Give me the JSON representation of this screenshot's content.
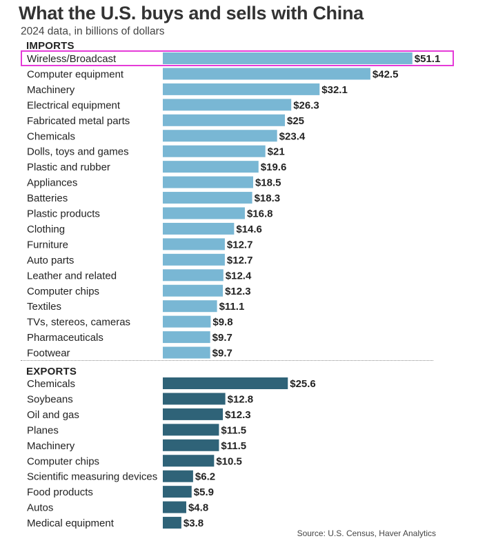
{
  "header": {
    "title": "What the U.S. buys and sells with China",
    "subtitle": "2024 data, in billions of dollars"
  },
  "footer": {
    "source": "Source: U.S. Census, Haver Analytics"
  },
  "colors": {
    "imports_bar": "#79b7d4",
    "exports_bar": "#2f6378",
    "highlight_border": "#e53ad8"
  },
  "chart_data": [
    {
      "type": "bar",
      "orientation": "horizontal",
      "section": "IMPORTS",
      "categories": [
        "Wireless/Broadcast",
        "Computer equipment",
        "Machinery",
        "Electrical equipment",
        "Fabricated metal parts",
        "Chemicals",
        "Dolls, toys and games",
        "Plastic and rubber",
        "Appliances",
        "Batteries",
        "Plastic products",
        "Clothing",
        "Furniture",
        "Auto parts",
        "Leather and related",
        "Computer chips",
        "Textiles",
        "TVs, stereos, cameras",
        "Pharmaceuticals",
        "Footwear"
      ],
      "values": [
        51.1,
        42.5,
        32.1,
        26.3,
        25,
        23.4,
        21,
        19.6,
        18.5,
        18.3,
        16.8,
        14.6,
        12.7,
        12.7,
        12.4,
        12.3,
        11.1,
        9.8,
        9.7,
        9.7
      ],
      "value_labels": [
        "$51.1",
        "$42.5",
        "$32.1",
        "$26.3",
        "$25",
        "$23.4",
        "$21",
        "$19.6",
        "$18.5",
        "$18.3",
        "$16.8",
        "$14.6",
        "$12.7",
        "$12.7",
        "$12.4",
        "$12.3",
        "$11.1",
        "$9.8",
        "$9.7",
        "$9.7"
      ],
      "highlighted_category": "Wireless/Broadcast"
    },
    {
      "type": "bar",
      "orientation": "horizontal",
      "section": "EXPORTS",
      "categories": [
        "Chemicals",
        "Soybeans",
        "Oil and gas",
        "Planes",
        "Machinery",
        "Computer chips",
        "Scientific measuring devices",
        "Food products",
        "Autos",
        "Medical equipment"
      ],
      "values": [
        25.6,
        12.8,
        12.3,
        11.5,
        11.5,
        10.5,
        6.2,
        5.9,
        4.8,
        3.8
      ],
      "value_labels": [
        "$25.6",
        "$12.8",
        "$12.3",
        "$11.5",
        "$11.5",
        "$10.5",
        "$6.2",
        "$5.9",
        "$4.8",
        "$3.8"
      ]
    }
  ]
}
